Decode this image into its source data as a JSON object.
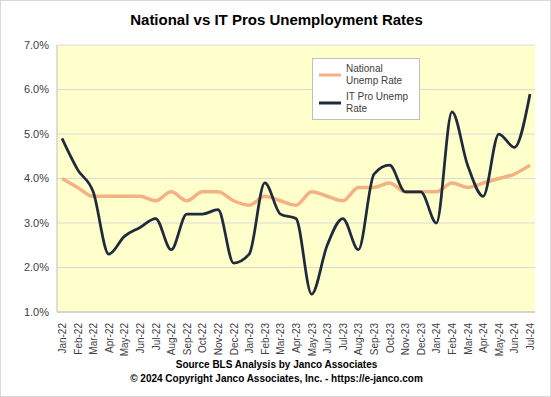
{
  "chart_data": {
    "type": "line",
    "title": "National vs IT Pros Unemployment Rates",
    "annotations": [
      "Source BLS Analysis by Janco Associates",
      "© 2024 Copyright Janco Associates, Inc. - https://e-janco.com"
    ],
    "categories": [
      "Jan-22",
      "Feb-22",
      "Mar-22",
      "Apr-22",
      "May-22",
      "Jun-22",
      "Jul-22",
      "Aug-22",
      "Sep-22",
      "Oct-22",
      "Nov-22",
      "Dec-22",
      "Jan-23",
      "Feb-23",
      "Mar-23",
      "Apr-23",
      "May-23",
      "Jun-23",
      "Jul-23",
      "Aug-23",
      "Sep-23",
      "Oct-23",
      "Nov-23",
      "Dec-23",
      "Jan-24",
      "Feb-24",
      "Mar-24",
      "Apr-24",
      "May-24",
      "Jun-24",
      "Jul-24"
    ],
    "series": [
      {
        "name": "National Unemp Rate",
        "color": "#f4b183",
        "marker": "none",
        "line_style": "solid",
        "values": [
          4.0,
          3.8,
          3.6,
          3.6,
          3.6,
          3.6,
          3.5,
          3.7,
          3.5,
          3.7,
          3.7,
          3.5,
          3.4,
          3.6,
          3.5,
          3.4,
          3.7,
          3.6,
          3.5,
          3.8,
          3.8,
          3.9,
          3.7,
          3.7,
          3.7,
          3.9,
          3.8,
          3.9,
          4.0,
          4.1,
          4.3
        ]
      },
      {
        "name": "IT Pro Unemp Rate",
        "color": "#1f2a3c",
        "marker": "none",
        "line_style": "solid",
        "values": [
          4.9,
          4.2,
          3.7,
          2.3,
          2.7,
          2.9,
          3.1,
          2.4,
          3.2,
          3.2,
          3.3,
          2.1,
          2.3,
          3.9,
          3.2,
          3.1,
          1.4,
          2.5,
          3.1,
          2.4,
          4.1,
          4.3,
          3.7,
          3.7,
          3.0,
          5.5,
          4.3,
          3.6,
          5.0,
          4.7,
          5.9
        ]
      }
    ],
    "ylim": [
      1,
      7
    ],
    "yticks": [
      {
        "value": 1,
        "label": "1.0%"
      },
      {
        "value": 2,
        "label": "2.0%"
      },
      {
        "value": 3,
        "label": "3.0%"
      },
      {
        "value": 4,
        "label": "4.0%"
      },
      {
        "value": 5,
        "label": "5.0%"
      },
      {
        "value": 6,
        "label": "6.0%"
      },
      {
        "value": 7,
        "label": "7.0%"
      }
    ],
    "grid": true,
    "legend": "upper right"
  }
}
